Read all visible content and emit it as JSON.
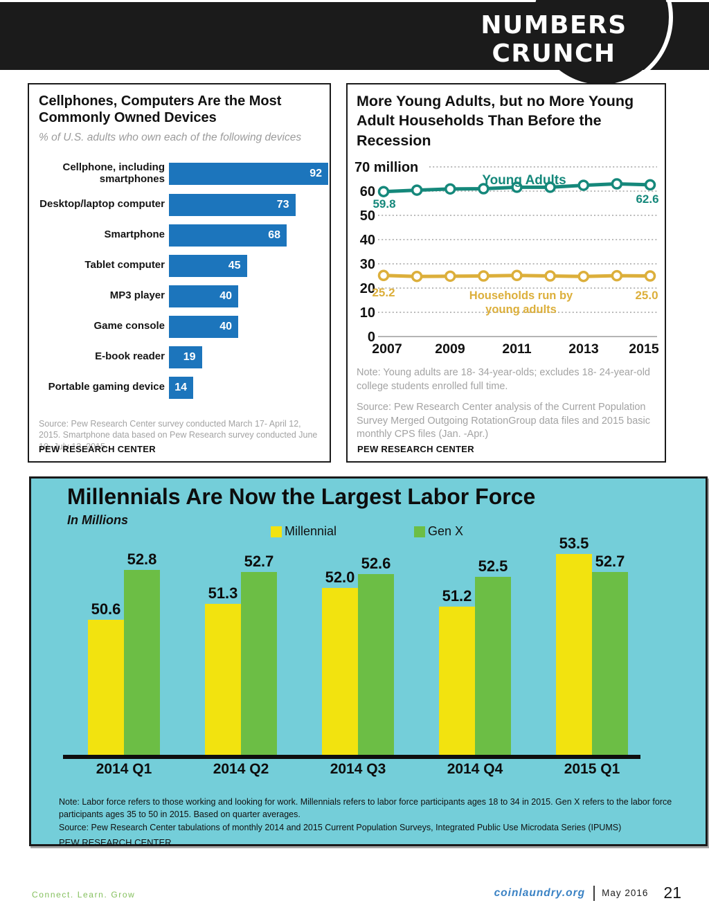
{
  "header": {
    "line1": "NUMBERS",
    "line2": "CRUNCH"
  },
  "footer": {
    "tagline": "Connect. Learn. Grow",
    "site": "coinlaundry.org",
    "issue": "May 2016",
    "page": "21"
  },
  "colors": {
    "masthead_black": "#1b1b1b",
    "devices_bar_blue": "#1C75BC",
    "young_adults_teal": "#15887B",
    "households_gold": "#DCAF3B",
    "labor_bg_cyan": "#74CED9",
    "millennial_yellow": "#F2E30F",
    "genx_green": "#6CBE45"
  },
  "chart_data": [
    {
      "type": "bar",
      "orientation": "horizontal",
      "title": "Cellphones, Computers Are the Most Commonly Owned Devices",
      "subtitle": "% of U.S. adults who own each of the following devices",
      "categories": [
        "Cellphone, including smartphones",
        "Desktop/laptop computer",
        "Smartphone",
        "Tablet computer",
        "MP3 player",
        "Game console",
        "E-book reader",
        "Portable gaming device"
      ],
      "values": [
        92,
        73,
        68,
        45,
        40,
        40,
        19,
        14
      ],
      "xlim": [
        0,
        100
      ],
      "grid": false,
      "bar_color": "#1C75BC",
      "source": "Source: Pew Research Center survey conducted March 17- April 12, 2015. Smartphone data based on Pew Research survey conducted June 10- July 12, 2015.",
      "brand": "PEW RESEARCH CENTER"
    },
    {
      "type": "line",
      "title": "More Young Adults, but no More Young Adult Households Than Before the Recession",
      "x": [
        2007,
        2008,
        2009,
        2010,
        2011,
        2012,
        2013,
        2014,
        2015
      ],
      "x_tick_labels": [
        "2007",
        "2009",
        "2011",
        "2013",
        "2015"
      ],
      "yticks": [
        0,
        10,
        20,
        30,
        40,
        50,
        60,
        70
      ],
      "ytick_top_label": "70 million",
      "ylim": [
        0,
        70
      ],
      "grid": "dotted horizontal",
      "legend_position": "inline labels",
      "series": [
        {
          "name": "Young Adults",
          "color": "#15887B",
          "values": [
            59.8,
            60.4,
            60.9,
            61.0,
            61.6,
            61.6,
            62.4,
            63.0,
            62.6
          ],
          "start_label": "59.8",
          "end_label": "62.6"
        },
        {
          "name": "Households run by young adults",
          "color": "#DCAF3B",
          "values": [
            25.2,
            24.8,
            24.9,
            25.0,
            25.2,
            25.0,
            24.8,
            25.1,
            25.0
          ],
          "start_label": "25.2",
          "end_label": "25.0"
        }
      ],
      "note": "Note: Young adults are 18- 34-year-olds; excludes 18- 24-year-old college students enrolled full time.",
      "source": "Source: Pew Research Center analysis of the Current Population Survey Merged Outgoing RotationGroup data files and 2015 basic monthly CPS files (Jan. -Apr.)",
      "brand": "PEW RESEARCH CENTER"
    },
    {
      "type": "bar",
      "orientation": "vertical-grouped",
      "title": "Millennials Are Now the Largest Labor Force",
      "subtitle": "In Millions",
      "categories": [
        "2014 Q1",
        "2014 Q2",
        "2014 Q3",
        "2014 Q4",
        "2015 Q1"
      ],
      "series": [
        {
          "name": "Millennial",
          "color": "#F2E30F",
          "values": [
            50.6,
            51.3,
            52.0,
            51.2,
            53.5
          ],
          "labels": [
            "50.6",
            "51.3",
            "52.0",
            "51.2",
            "53.5"
          ]
        },
        {
          "name": "Gen X",
          "color": "#6CBE45",
          "values": [
            52.8,
            52.7,
            52.6,
            52.5,
            52.7
          ],
          "labels": [
            "52.8",
            "52.7",
            "52.6",
            "52.5",
            "52.7"
          ]
        }
      ],
      "legend_position": "top",
      "background": "#74CED9",
      "grid": false,
      "note": "Note: Labor force refers to those working and looking for work. Millennials refers to labor force participants ages 18 to 34 in 2015. Gen X refers to the labor force participants ages 35 to 50 in 2015. Based on quarter averages.",
      "source": "Source: Pew Research Center tabulations of monthly 2014 and 2015 Current Population Surveys, Integrated Public Use Microdata Series (IPUMS)",
      "brand": "PEW RESEARCH CENTER"
    }
  ]
}
